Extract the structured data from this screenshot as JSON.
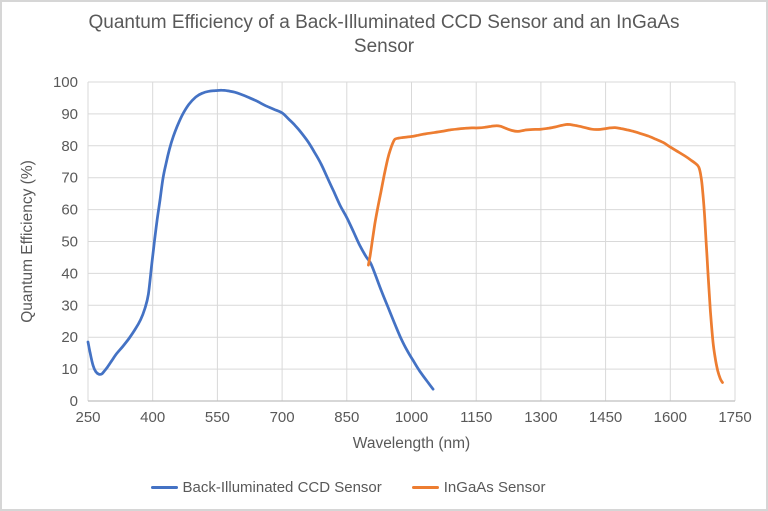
{
  "title": "Quantum Efficiency of a Back-Illuminated CCD Sensor and an InGaAs Sensor",
  "colors": {
    "ccd_blue": "#4472C4",
    "ingaas_orange": "#ED7D31",
    "text": "#595959",
    "grid": "#D9D9D9",
    "axis": "#BFBFBF",
    "background": "#FFFFFF",
    "frame_border": "#D6D6D6"
  },
  "chart_data": {
    "type": "line",
    "title": "Quantum Efficiency of a Back-Illuminated CCD Sensor and an InGaAs Sensor",
    "xlabel": "Wavelength (nm)",
    "ylabel": "Quantum Efficiency (%)",
    "xlim": [
      250,
      1750
    ],
    "ylim": [
      0,
      100
    ],
    "x_ticks": [
      250,
      400,
      550,
      700,
      850,
      1000,
      1150,
      1300,
      1450,
      1600,
      1750
    ],
    "y_ticks": [
      0,
      10,
      20,
      30,
      40,
      50,
      60,
      70,
      80,
      90,
      100
    ],
    "grid": true,
    "legend_position": "bottom",
    "series": [
      {
        "name": "Back-Illuminated CCD Sensor",
        "color": "#4472C4",
        "points": [
          [
            250,
            18.5
          ],
          [
            255,
            15
          ],
          [
            262,
            11
          ],
          [
            268,
            9.2
          ],
          [
            275,
            8.4
          ],
          [
            282,
            8.5
          ],
          [
            288,
            9.4
          ],
          [
            295,
            10.6
          ],
          [
            305,
            12.6
          ],
          [
            315,
            14.6
          ],
          [
            330,
            17
          ],
          [
            345,
            19.6
          ],
          [
            360,
            22.6
          ],
          [
            372,
            25.5
          ],
          [
            382,
            29
          ],
          [
            390,
            33.5
          ],
          [
            398,
            43
          ],
          [
            404,
            50
          ],
          [
            410,
            56.5
          ],
          [
            417,
            63
          ],
          [
            424,
            70
          ],
          [
            431,
            74.5
          ],
          [
            439,
            79
          ],
          [
            448,
            83
          ],
          [
            458,
            86.5
          ],
          [
            470,
            90
          ],
          [
            484,
            93
          ],
          [
            500,
            95.3
          ],
          [
            515,
            96.5
          ],
          [
            530,
            97.1
          ],
          [
            545,
            97.3
          ],
          [
            560,
            97.4
          ],
          [
            575,
            97.2
          ],
          [
            590,
            96.8
          ],
          [
            605,
            96.1
          ],
          [
            620,
            95.3
          ],
          [
            640,
            94.1
          ],
          [
            660,
            92.7
          ],
          [
            680,
            91.5
          ],
          [
            700,
            90.3
          ],
          [
            715,
            88.4
          ],
          [
            730,
            86.4
          ],
          [
            745,
            84
          ],
          [
            760,
            81.3
          ],
          [
            775,
            78
          ],
          [
            790,
            74.4
          ],
          [
            805,
            70
          ],
          [
            820,
            65.6
          ],
          [
            835,
            61.2
          ],
          [
            850,
            57.5
          ],
          [
            865,
            53.2
          ],
          [
            880,
            48.8
          ],
          [
            895,
            45.2
          ],
          [
            905,
            43.3
          ],
          [
            915,
            40
          ],
          [
            930,
            34.6
          ],
          [
            945,
            29.6
          ],
          [
            960,
            24.6
          ],
          [
            975,
            19.8
          ],
          [
            990,
            15.8
          ],
          [
            1005,
            12.4
          ],
          [
            1020,
            9.2
          ],
          [
            1035,
            6.4
          ],
          [
            1050,
            3.7
          ]
        ]
      },
      {
        "name": "InGaAs Sensor",
        "color": "#ED7D31",
        "points": [
          [
            900,
            42.6
          ],
          [
            904,
            45.5
          ],
          [
            909,
            50
          ],
          [
            915,
            55.5
          ],
          [
            921,
            60
          ],
          [
            929,
            65.5
          ],
          [
            937,
            71
          ],
          [
            945,
            76
          ],
          [
            951,
            78.8
          ],
          [
            957,
            81
          ],
          [
            962,
            82.1
          ],
          [
            970,
            82.4
          ],
          [
            980,
            82.6
          ],
          [
            1000,
            82.9
          ],
          [
            1015,
            83.3
          ],
          [
            1030,
            83.7
          ],
          [
            1050,
            84.1
          ],
          [
            1070,
            84.5
          ],
          [
            1090,
            85
          ],
          [
            1110,
            85.3
          ],
          [
            1125,
            85.5
          ],
          [
            1140,
            85.6
          ],
          [
            1155,
            85.6
          ],
          [
            1170,
            85.8
          ],
          [
            1185,
            86.1
          ],
          [
            1197,
            86.3
          ],
          [
            1207,
            86.1
          ],
          [
            1220,
            85.4
          ],
          [
            1233,
            84.8
          ],
          [
            1247,
            84.5
          ],
          [
            1262,
            84.9
          ],
          [
            1280,
            85.1
          ],
          [
            1300,
            85.2
          ],
          [
            1317,
            85.5
          ],
          [
            1333,
            85.9
          ],
          [
            1348,
            86.4
          ],
          [
            1361,
            86.7
          ],
          [
            1375,
            86.5
          ],
          [
            1390,
            86.1
          ],
          [
            1405,
            85.6
          ],
          [
            1418,
            85.2
          ],
          [
            1432,
            85.1
          ],
          [
            1446,
            85.3
          ],
          [
            1460,
            85.6
          ],
          [
            1472,
            85.7
          ],
          [
            1486,
            85.4
          ],
          [
            1500,
            85
          ],
          [
            1515,
            84.5
          ],
          [
            1530,
            83.9
          ],
          [
            1548,
            83.1
          ],
          [
            1566,
            82.1
          ],
          [
            1584,
            81
          ],
          [
            1600,
            79.6
          ],
          [
            1617,
            78.2
          ],
          [
            1634,
            76.8
          ],
          [
            1648,
            75.5
          ],
          [
            1658,
            74.5
          ],
          [
            1666,
            73.3
          ],
          [
            1671,
            70.5
          ],
          [
            1675,
            66
          ],
          [
            1679,
            59
          ],
          [
            1683,
            50
          ],
          [
            1687,
            41
          ],
          [
            1691,
            32
          ],
          [
            1695,
            24.5
          ],
          [
            1699,
            18.5
          ],
          [
            1704,
            13.5
          ],
          [
            1710,
            9.5
          ],
          [
            1716,
            7
          ],
          [
            1721,
            5.8
          ]
        ]
      }
    ]
  },
  "legend": {
    "items": [
      {
        "label": "Back-Illuminated CCD Sensor",
        "color": "#4472C4"
      },
      {
        "label": "InGaAs Sensor",
        "color": "#ED7D31"
      }
    ]
  }
}
